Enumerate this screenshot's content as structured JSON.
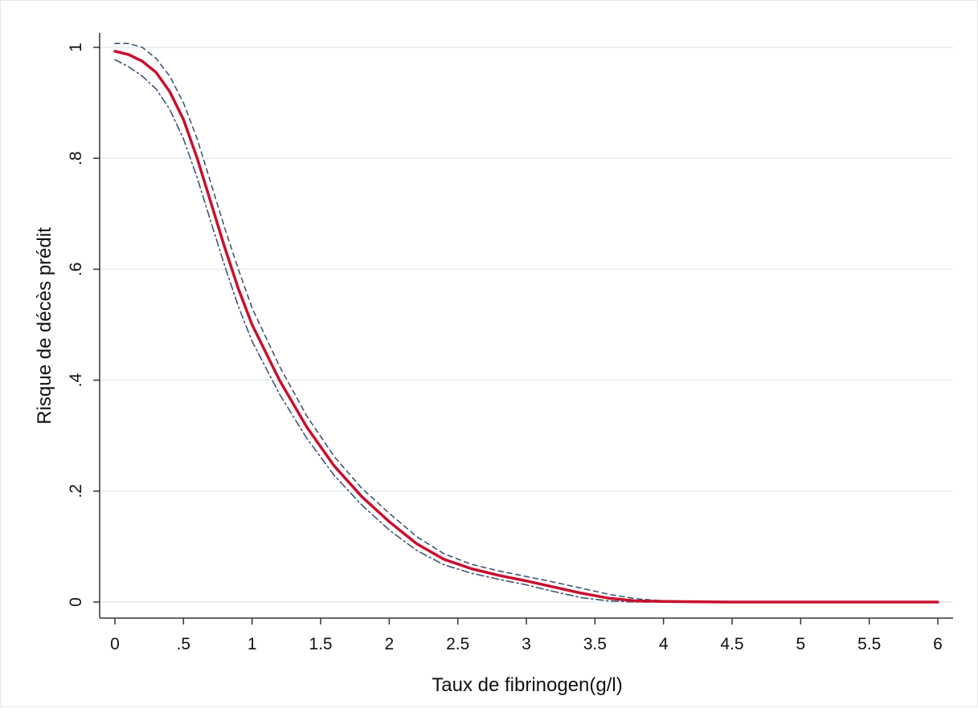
{
  "chart_data": {
    "type": "line",
    "title": "",
    "xlabel": "Taux de fibrinogen(g/l)",
    "ylabel": "Risque de décès prédit",
    "xlim": [
      0,
      6
    ],
    "ylim": [
      0,
      1
    ],
    "x_ticks": [
      0,
      0.5,
      1,
      1.5,
      2,
      2.5,
      3,
      3.5,
      4,
      4.5,
      5,
      5.5,
      6
    ],
    "x_tick_labels": [
      "0",
      ".5",
      "1",
      "1.5",
      "2",
      "2.5",
      "3",
      "3.5",
      "4",
      "4.5",
      "5",
      "5.5",
      "6"
    ],
    "y_ticks": [
      0,
      0.2,
      0.4,
      0.6,
      0.8,
      1
    ],
    "y_tick_labels": [
      "0",
      ".2",
      ".4",
      ".6",
      ".8",
      "1"
    ],
    "grid": true,
    "legend": "none",
    "colors": {
      "main": "#c8102e",
      "ci": "#3f5570",
      "grid": "#e4ecef",
      "axis": "#333333"
    },
    "series": [
      {
        "style": "solid",
        "x": [
          0,
          0.1,
          0.2,
          0.3,
          0.4,
          0.5,
          0.6,
          0.7,
          0.8,
          0.9,
          1.0,
          1.2,
          1.4,
          1.6,
          1.8,
          2.0,
          2.2,
          2.4,
          2.6,
          2.8,
          3.0,
          3.2,
          3.4,
          3.6,
          3.8,
          4.0,
          4.5,
          5.0,
          5.5,
          6.0
        ],
        "y": [
          0.993,
          0.987,
          0.975,
          0.955,
          0.92,
          0.87,
          0.8,
          0.72,
          0.64,
          0.565,
          0.5,
          0.4,
          0.315,
          0.245,
          0.19,
          0.145,
          0.105,
          0.077,
          0.06,
          0.048,
          0.038,
          0.027,
          0.016,
          0.007,
          0.002,
          0.001,
          0,
          0,
          0,
          0
        ]
      },
      {
        "style": "dash",
        "x": [
          0,
          0.1,
          0.2,
          0.3,
          0.4,
          0.5,
          0.6,
          0.7,
          0.8,
          0.9,
          1.0,
          1.2,
          1.4,
          1.6,
          1.8,
          2.0,
          2.2,
          2.4,
          2.6,
          2.8,
          3.0,
          3.2,
          3.4,
          3.6,
          3.8,
          4.0,
          4.5,
          5.0,
          5.5,
          6.0
        ],
        "y": [
          1.007,
          1.007,
          1.0,
          0.98,
          0.948,
          0.9,
          0.835,
          0.755,
          0.675,
          0.6,
          0.53,
          0.425,
          0.335,
          0.262,
          0.205,
          0.16,
          0.118,
          0.087,
          0.068,
          0.056,
          0.046,
          0.036,
          0.025,
          0.014,
          0.006,
          0.002,
          0.001,
          0,
          0,
          0
        ]
      },
      {
        "style": "dashdot",
        "x": [
          0,
          0.1,
          0.2,
          0.3,
          0.4,
          0.5,
          0.6,
          0.7,
          0.8,
          0.9,
          1.0,
          1.2,
          1.4,
          1.6,
          1.8,
          2.0,
          2.2,
          2.4,
          2.6,
          2.8,
          3.0,
          3.2,
          3.4,
          3.6,
          3.8,
          4.0,
          4.5,
          5.0,
          5.5,
          6.0
        ],
        "y": [
          0.978,
          0.965,
          0.948,
          0.925,
          0.888,
          0.835,
          0.765,
          0.685,
          0.607,
          0.533,
          0.47,
          0.375,
          0.295,
          0.228,
          0.175,
          0.13,
          0.093,
          0.067,
          0.052,
          0.041,
          0.031,
          0.019,
          0.008,
          0.002,
          0,
          0,
          0,
          0,
          0,
          0
        ]
      }
    ]
  }
}
